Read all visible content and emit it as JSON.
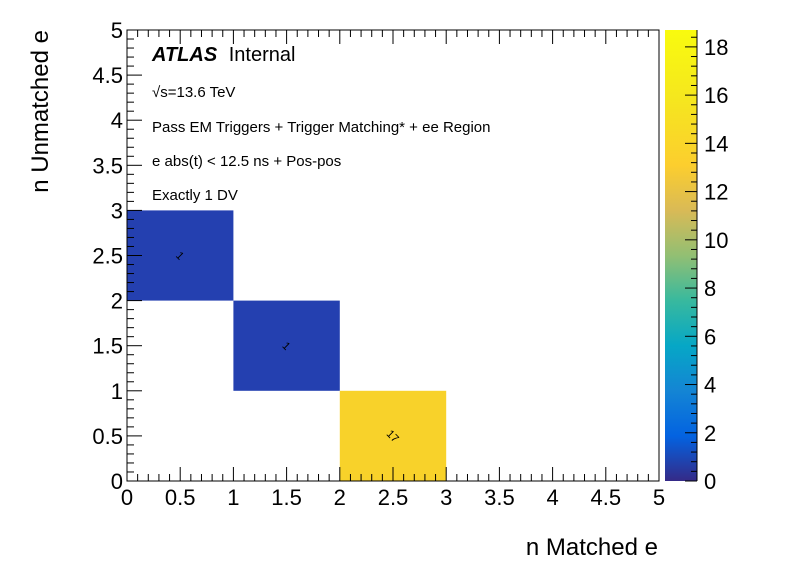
{
  "chart_data": {
    "type": "heatmap",
    "xlabel": "n Matched e",
    "ylabel": "n Unmatched e",
    "xlim": [
      0,
      5
    ],
    "ylim": [
      0,
      5
    ],
    "xticks": [
      "0",
      "0.5",
      "1",
      "1.5",
      "2",
      "2.5",
      "3",
      "3.5",
      "4",
      "4.5",
      "5"
    ],
    "yticks": [
      "0",
      "0.5",
      "1",
      "1.5",
      "2",
      "2.5",
      "3",
      "3.5",
      "4",
      "4.5",
      "5"
    ],
    "zlim": [
      0,
      18.7
    ],
    "zticks": [
      "0",
      "2",
      "4",
      "6",
      "8",
      "10",
      "12",
      "14",
      "16",
      "18"
    ],
    "cells": [
      {
        "x": [
          0,
          1
        ],
        "y": [
          2,
          3
        ],
        "value": 1,
        "label": "1"
      },
      {
        "x": [
          1,
          2
        ],
        "y": [
          1,
          2
        ],
        "value": 1,
        "label": "1"
      },
      {
        "x": [
          2,
          3
        ],
        "y": [
          0,
          1
        ],
        "value": 17,
        "label": "17"
      }
    ],
    "annotations": {
      "atlas": "ATLAS",
      "internal": "Internal",
      "sqrt": "√",
      "energy": "s=13.6 TeV",
      "selection": "Pass EM Triggers + Trigger Matching* + ee Region",
      "timing": "e abs(t) < 12.5 ns + Pos-pos",
      "dv": "Exactly 1 DV"
    },
    "colors": {
      "low": "#352a87",
      "cell_low": "#2440b0",
      "cell_high": "#f8d22a",
      "high": "#f9fb0e"
    }
  }
}
